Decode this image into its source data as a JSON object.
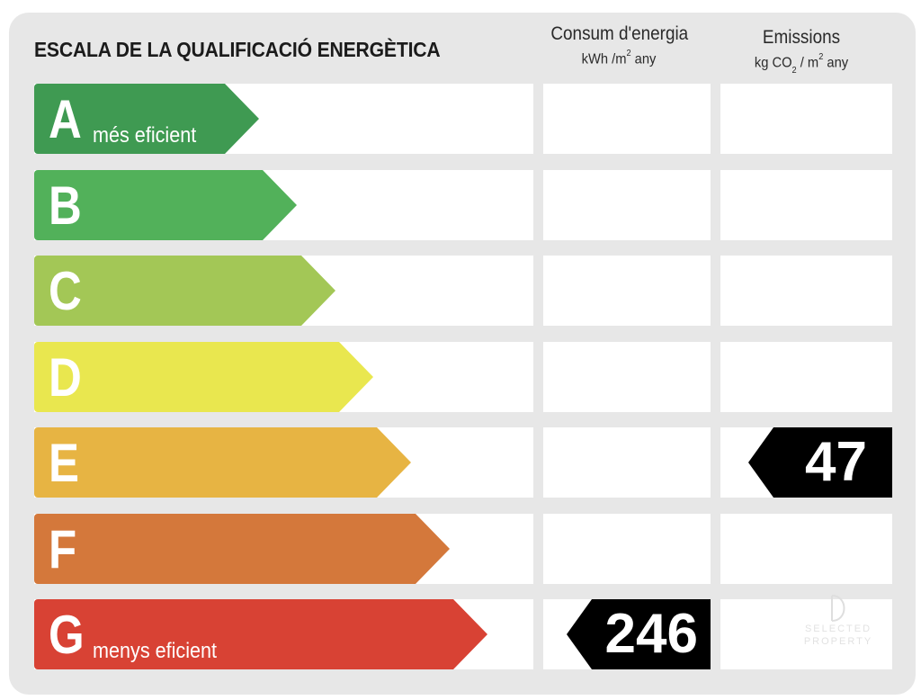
{
  "title": "ESCALA DE LA QUALIFICACIÓ ENERGÈTICA",
  "columns": {
    "energy": {
      "label": "Consum d'energia",
      "unit_pre": "kWh /m",
      "unit_sup": "2",
      "unit_post": " any"
    },
    "emissions": {
      "label": "Emissions",
      "unit_pre": "kg CO",
      "unit_sub": "2",
      "unit_mid": " / m",
      "unit_sup": "2",
      "unit_post": " any"
    }
  },
  "ratings": [
    {
      "letter": "A",
      "sublabel": "més eficient",
      "color": "#3f9a52"
    },
    {
      "letter": "B",
      "sublabel": "",
      "color": "#52b15a"
    },
    {
      "letter": "C",
      "sublabel": "",
      "color": "#a3c756"
    },
    {
      "letter": "D",
      "sublabel": "",
      "color": "#e9e74f"
    },
    {
      "letter": "E",
      "sublabel": "",
      "color": "#e7b443"
    },
    {
      "letter": "F",
      "sublabel": "",
      "color": "#d4783b"
    },
    {
      "letter": "G",
      "sublabel": "menys eficient",
      "color": "#d84234"
    }
  ],
  "energy_indicator": {
    "value": "246",
    "rating": "G"
  },
  "emissions_indicator": {
    "value": "47",
    "rating": "E"
  },
  "watermark": {
    "line1": "SELECTED",
    "line2": "PROPERTY"
  }
}
